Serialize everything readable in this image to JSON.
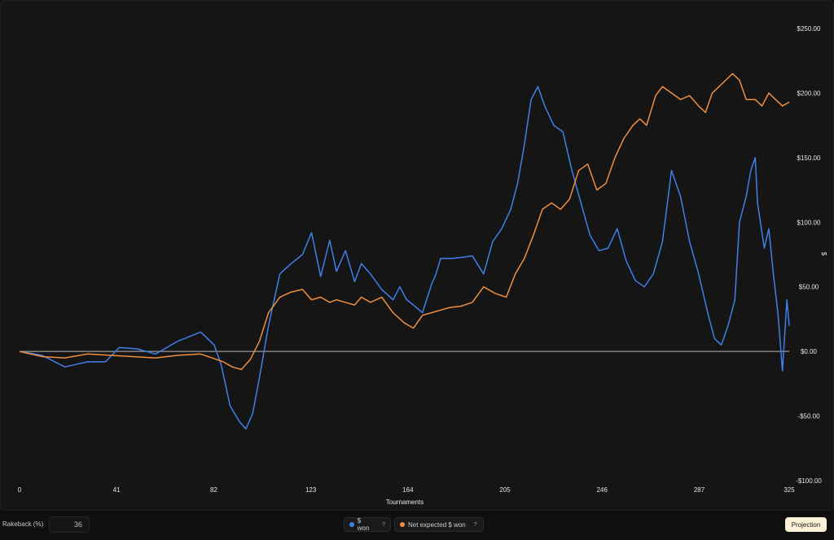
{
  "chart_data": {
    "type": "line",
    "xlabel": "Tournaments",
    "ylabel": "$",
    "xlim": [
      0,
      325
    ],
    "ylim": [
      -100,
      250
    ],
    "x_ticks": [
      0,
      41,
      82,
      123,
      164,
      205,
      246,
      287,
      325
    ],
    "y_ticks": [
      250,
      200,
      150,
      100,
      50,
      0,
      -50,
      -100
    ],
    "y_tick_labels": [
      "$250.00",
      "$200.00",
      "$150.00",
      "$100.00",
      "$50.00",
      "$0.00",
      "-$50.00",
      "-$100.00"
    ],
    "baseline": 0,
    "series": [
      {
        "name": "$ won",
        "color": "#3f7fe8",
        "points": [
          [
            0,
            0
          ],
          [
            10,
            -3
          ],
          [
            20,
            -12
          ],
          [
            30,
            -8
          ],
          [
            38,
            -8
          ],
          [
            44,
            3
          ],
          [
            52,
            2
          ],
          [
            60,
            -2
          ],
          [
            70,
            8
          ],
          [
            80,
            15
          ],
          [
            86,
            5
          ],
          [
            89,
            -10
          ],
          [
            93,
            -42
          ],
          [
            97,
            -54
          ],
          [
            100,
            -60
          ],
          [
            103,
            -48
          ],
          [
            106,
            -20
          ],
          [
            110,
            20
          ],
          [
            115,
            60
          ],
          [
            120,
            68
          ],
          [
            125,
            75
          ],
          [
            129,
            92
          ],
          [
            133,
            58
          ],
          [
            137,
            86
          ],
          [
            140,
            62
          ],
          [
            144,
            78
          ],
          [
            148,
            54
          ],
          [
            151,
            68
          ],
          [
            155,
            60
          ],
          [
            160,
            48
          ],
          [
            165,
            40
          ],
          [
            168,
            50
          ],
          [
            171,
            40
          ],
          [
            174,
            36
          ],
          [
            178,
            30
          ],
          [
            182,
            52
          ],
          [
            184,
            60
          ],
          [
            186,
            72
          ],
          [
            191,
            72
          ],
          [
            196,
            73
          ],
          [
            200,
            74
          ],
          [
            205,
            60
          ],
          [
            209,
            85
          ],
          [
            213,
            95
          ],
          [
            217,
            110
          ],
          [
            220,
            130
          ],
          [
            223,
            160
          ],
          [
            226,
            195
          ],
          [
            229,
            205
          ],
          [
            232,
            190
          ],
          [
            236,
            175
          ],
          [
            240,
            170
          ],
          [
            244,
            140
          ],
          [
            248,
            115
          ],
          [
            252,
            90
          ],
          [
            256,
            78
          ],
          [
            260,
            80
          ],
          [
            264,
            95
          ],
          [
            268,
            70
          ],
          [
            272,
            55
          ],
          [
            276,
            50
          ],
          [
            280,
            60
          ],
          [
            284,
            85
          ],
          [
            288,
            140
          ],
          [
            292,
            120
          ],
          [
            296,
            85
          ],
          [
            300,
            60
          ],
          [
            304,
            30
          ],
          [
            307,
            10
          ],
          [
            310,
            5
          ],
          [
            313,
            20
          ],
          [
            316,
            40
          ],
          [
            318,
            100
          ],
          [
            321,
            120
          ],
          [
            323,
            140
          ],
          [
            325,
            150
          ],
          [
            326,
            115
          ],
          [
            329,
            80
          ],
          [
            331,
            95
          ],
          [
            333,
            60
          ],
          [
            335,
            30
          ],
          [
            337,
            -15
          ],
          [
            339,
            40
          ],
          [
            340,
            20
          ]
        ]
      },
      {
        "name": "Net expected $ won",
        "color": "#ef8f3e",
        "points": [
          [
            0,
            0
          ],
          [
            10,
            -4
          ],
          [
            20,
            -5
          ],
          [
            30,
            -2
          ],
          [
            40,
            -3
          ],
          [
            50,
            -4
          ],
          [
            60,
            -5
          ],
          [
            70,
            -3
          ],
          [
            80,
            -2
          ],
          [
            85,
            -5
          ],
          [
            90,
            -8
          ],
          [
            94,
            -12
          ],
          [
            98,
            -14
          ],
          [
            102,
            -6
          ],
          [
            106,
            8
          ],
          [
            110,
            30
          ],
          [
            115,
            42
          ],
          [
            120,
            46
          ],
          [
            125,
            48
          ],
          [
            129,
            40
          ],
          [
            133,
            42
          ],
          [
            137,
            38
          ],
          [
            140,
            40
          ],
          [
            144,
            38
          ],
          [
            148,
            36
          ],
          [
            151,
            42
          ],
          [
            155,
            38
          ],
          [
            160,
            42
          ],
          [
            165,
            30
          ],
          [
            170,
            22
          ],
          [
            174,
            18
          ],
          [
            178,
            28
          ],
          [
            182,
            30
          ],
          [
            186,
            32
          ],
          [
            190,
            34
          ],
          [
            195,
            35
          ],
          [
            200,
            38
          ],
          [
            205,
            50
          ],
          [
            210,
            45
          ],
          [
            215,
            42
          ],
          [
            219,
            60
          ],
          [
            223,
            72
          ],
          [
            227,
            90
          ],
          [
            231,
            110
          ],
          [
            235,
            115
          ],
          [
            239,
            110
          ],
          [
            243,
            118
          ],
          [
            247,
            140
          ],
          [
            251,
            145
          ],
          [
            255,
            125
          ],
          [
            259,
            130
          ],
          [
            263,
            150
          ],
          [
            267,
            165
          ],
          [
            271,
            175
          ],
          [
            274,
            180
          ],
          [
            277,
            175
          ],
          [
            281,
            198
          ],
          [
            284,
            205
          ],
          [
            288,
            200
          ],
          [
            292,
            195
          ],
          [
            296,
            198
          ],
          [
            300,
            190
          ],
          [
            303,
            185
          ],
          [
            306,
            200
          ],
          [
            309,
            205
          ],
          [
            312,
            210
          ],
          [
            315,
            215
          ],
          [
            318,
            210
          ],
          [
            321,
            195
          ],
          [
            325,
            195
          ],
          [
            328,
            190
          ],
          [
            331,
            200
          ],
          [
            334,
            195
          ],
          [
            337,
            190
          ],
          [
            340,
            193
          ]
        ]
      }
    ]
  },
  "controls": {
    "rakeback_label": "Rakeback (%)",
    "rakeback_value": "36",
    "legend_dollar_won": "$ won",
    "legend_net_expected": "Net expected $ won",
    "help_mark": "?",
    "projection_label": "Projection"
  }
}
